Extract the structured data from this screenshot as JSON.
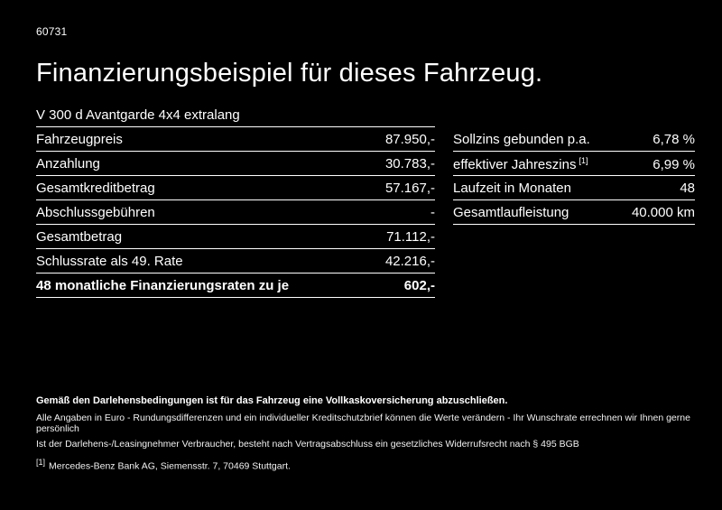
{
  "page": {
    "doc_id": "60731",
    "title": "Finanzierungsbeispiel für dieses Fahrzeug.",
    "model": "V 300 d Avantgarde 4x4 extralang"
  },
  "left_table": {
    "rows": [
      {
        "label": "Fahrzeugpreis",
        "value": "87.950,-"
      },
      {
        "label": "Anzahlung",
        "value": "30.783,-"
      },
      {
        "label": "Gesamtkreditbetrag",
        "value": "57.167,-"
      },
      {
        "label": "Abschlussgebühren",
        "value": "-"
      },
      {
        "label": "Gesamtbetrag",
        "value": "71.112,-"
      },
      {
        "label": "Schlussrate als 49. Rate",
        "value": "42.216,-"
      },
      {
        "label": "48 monatliche Finanzierungsraten zu je",
        "value": "602,-"
      }
    ]
  },
  "right_table": {
    "rows": [
      {
        "label": "Sollzins gebunden p.a.",
        "value": "6,78 %"
      },
      {
        "label": "effektiver Jahreszins",
        "sup": "[1]",
        "value": "6,99 %"
      },
      {
        "label": "Laufzeit in Monaten",
        "value": "48"
      },
      {
        "label": "Gesamtlaufleistung",
        "value": "40.000 km"
      }
    ]
  },
  "footer": {
    "bold_note": "Gemäß den Darlehensbedingungen ist für das Fahrzeug eine Vollkaskoversicherung abzuschließen.",
    "line1": "Alle Angaben in Euro - Rundungsdifferenzen und ein individueller Kreditschutzbrief können die Werte verändern - Ihr Wunschrate errechnen wir Ihnen gerne persönlich",
    "line2": "Ist der Darlehens-/Leasingnehmer Verbraucher, besteht nach Vertragsabschluss ein gesetzliches Widerrufsrecht nach § 495 BGB",
    "footnote_marker": "[1]",
    "footnote_text": "Mercedes-Benz Bank AG, Siemensstr. 7, 70469 Stuttgart."
  }
}
